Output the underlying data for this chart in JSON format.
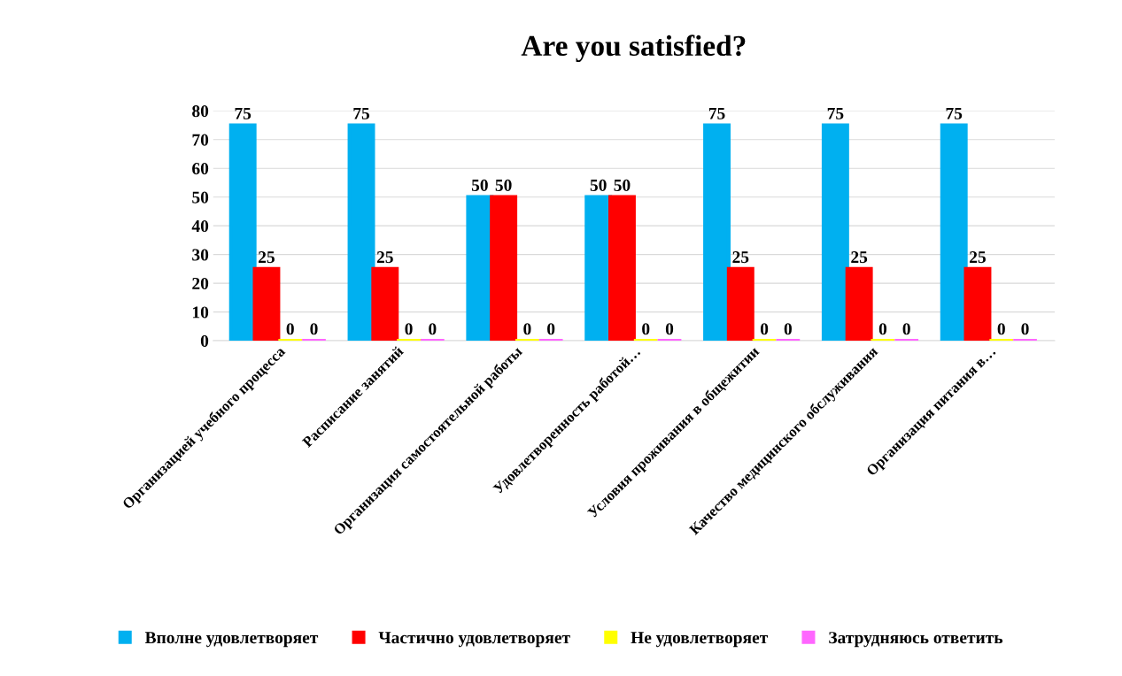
{
  "chart_data": {
    "type": "bar",
    "title": "Are you satisfied?",
    "categories": [
      "Организацией учебного процесса",
      "Расписание занятий",
      "Организация самостоятельной работы",
      "Удовлетворенность работой…",
      "Условия проживания в общежитии",
      "Качество медицинского обслуживания",
      "Организация питания в…"
    ],
    "series": [
      {
        "name": "Вполне удовлетворяет",
        "color": "#00b0f0",
        "values": [
          75,
          75,
          50,
          50,
          75,
          75,
          75
        ]
      },
      {
        "name": "Частично удовлетворяет",
        "color": "#ff0000",
        "values": [
          25,
          25,
          50,
          50,
          25,
          25,
          25
        ]
      },
      {
        "name": "Не удовлетворяет",
        "color": "#ffff00",
        "values": [
          0,
          0,
          0,
          0,
          0,
          0,
          0
        ]
      },
      {
        "name": "Затрудняюсь ответить",
        "color": "#ff66ff",
        "values": [
          0,
          0,
          0,
          0,
          0,
          0,
          0
        ]
      }
    ],
    "ylim": [
      0,
      80
    ],
    "yticks": [
      0,
      10,
      20,
      30,
      40,
      50,
      60,
      70,
      80
    ],
    "grid": "y",
    "legend": "bottom",
    "data_labels": true
  }
}
